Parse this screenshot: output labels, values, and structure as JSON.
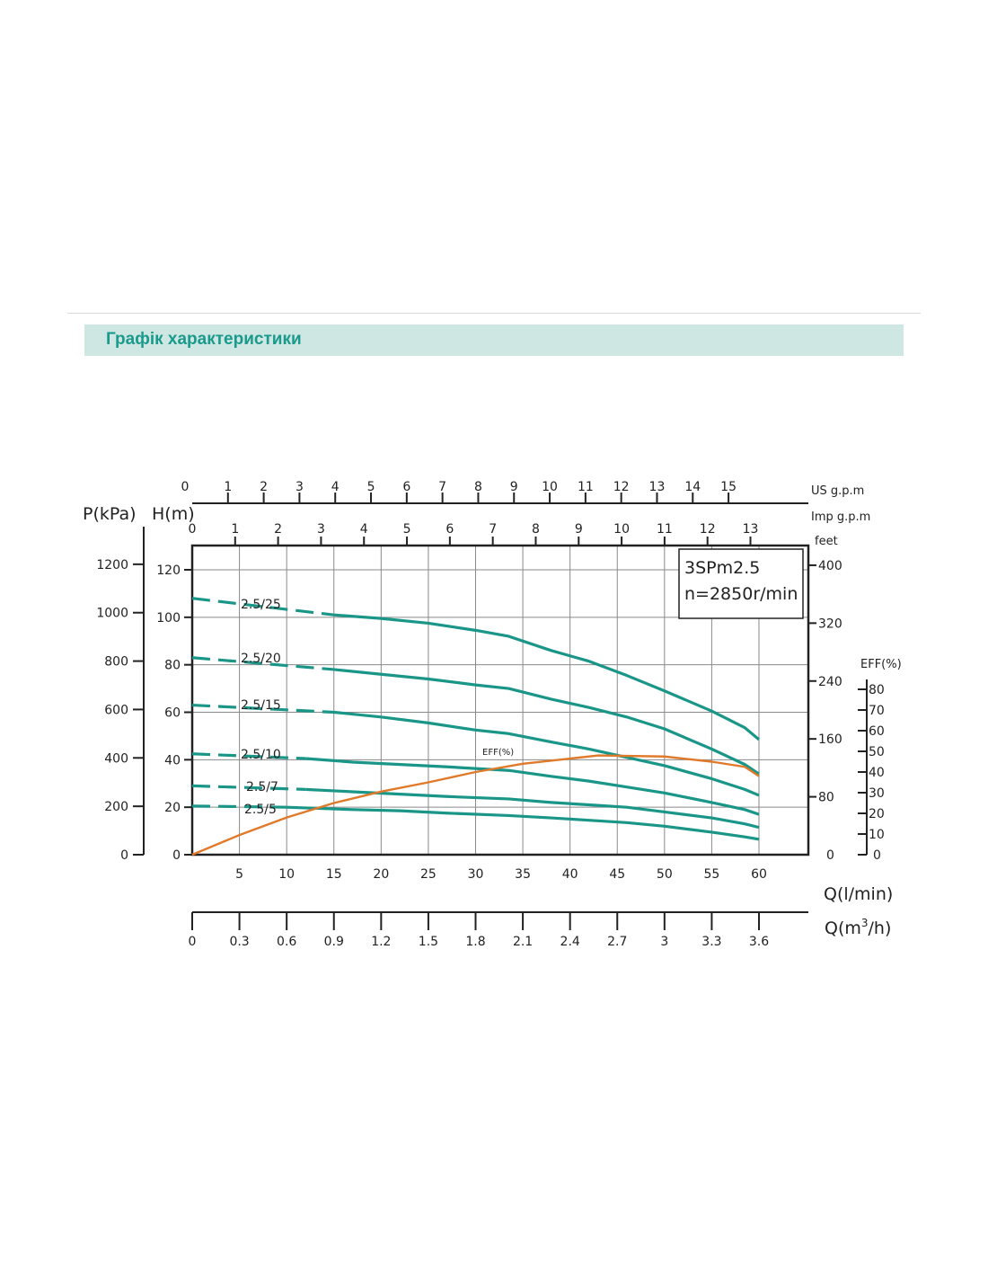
{
  "header": {
    "title": "Графік характеристики"
  },
  "chart_data": {
    "type": "line",
    "model": "3SPm2.5",
    "speed": "n=2850r/min",
    "xlabel_lmin": "Q(l/min)",
    "xlabel_m3h_prefix": "Q(m",
    "xlabel_m3h_sup": "3",
    "xlabel_m3h_suffix": "/h)",
    "ylabel_kpa": "P(kPa)",
    "ylabel_m": "H(m)",
    "axis_us_gpm_label": "US g.p.m",
    "axis_imp_gpm_label": "Imp g.p.m",
    "axis_feet_label": "feet",
    "axis_eff_label": "EFF(%)",
    "xlim": [
      0,
      65
    ],
    "ylim": [
      0,
      130
    ],
    "eff_ylim": [
      0,
      80
    ],
    "x_ticks_lmin": [
      "5",
      "10",
      "15",
      "20",
      "25",
      "30",
      "35",
      "40",
      "45",
      "50",
      "55",
      "60"
    ],
    "x_ticks_m3h": [
      "0",
      "0.3",
      "0.6",
      "0.9",
      "1.2",
      "1.5",
      "1.8",
      "2.1",
      "2.4",
      "2.7",
      "3",
      "3.3",
      "3.6"
    ],
    "us_gpm_ticks": [
      "0",
      "1",
      "2",
      "3",
      "4",
      "5",
      "6",
      "7",
      "8",
      "9",
      "10",
      "11",
      "12",
      "13",
      "14",
      "15"
    ],
    "imp_gpm_ticks": [
      "0",
      "1",
      "2",
      "3",
      "4",
      "5",
      "6",
      "7",
      "8",
      "9",
      "10",
      "11",
      "12",
      "13"
    ],
    "kpa_ticks": [
      "0",
      "200",
      "400",
      "600",
      "800",
      "1000",
      "1200"
    ],
    "m_ticks": [
      "0",
      "20",
      "40",
      "60",
      "80",
      "100",
      "120"
    ],
    "feet_ticks": [
      "0",
      "80",
      "160",
      "240",
      "320",
      "400"
    ],
    "eff_ticks": [
      "0",
      "10",
      "20",
      "30",
      "40",
      "50",
      "60",
      "70",
      "80"
    ],
    "series": [
      {
        "name": "2.5/25",
        "dashed": [
          [
            0,
            108
          ],
          [
            15,
            101
          ]
        ],
        "points": [
          [
            15,
            101
          ],
          [
            20,
            99.5
          ],
          [
            25,
            97.5
          ],
          [
            30,
            94.5
          ],
          [
            33.5,
            92
          ],
          [
            38,
            86
          ],
          [
            42,
            81.5
          ],
          [
            46,
            75.5
          ],
          [
            50,
            69
          ],
          [
            55,
            60.5
          ],
          [
            58.5,
            53.5
          ],
          [
            60,
            48.5
          ]
        ]
      },
      {
        "name": "2.5/20",
        "dashed": [
          [
            0,
            83
          ],
          [
            15,
            78
          ]
        ],
        "points": [
          [
            15,
            78
          ],
          [
            20,
            76
          ],
          [
            25,
            74
          ],
          [
            30,
            71.5
          ],
          [
            33.5,
            70
          ],
          [
            38,
            65.5
          ],
          [
            42,
            62
          ],
          [
            46,
            58
          ],
          [
            50,
            53
          ],
          [
            55,
            44.5
          ],
          [
            58.5,
            38
          ],
          [
            60,
            34
          ]
        ]
      },
      {
        "name": "2.5/15",
        "dashed": [
          [
            0,
            63
          ],
          [
            15,
            60
          ]
        ],
        "points": [
          [
            15,
            60
          ],
          [
            20,
            58
          ],
          [
            25,
            55.5
          ],
          [
            30,
            52.5
          ],
          [
            33.5,
            51
          ],
          [
            38,
            47.5
          ],
          [
            42,
            44.5
          ],
          [
            46,
            41
          ],
          [
            50,
            37.5
          ],
          [
            55,
            32
          ],
          [
            58.5,
            27.5
          ],
          [
            60,
            25
          ]
        ]
      },
      {
        "name": "2.5/10",
        "dashed": [
          [
            0,
            42.5
          ],
          [
            12,
            40.5
          ]
        ],
        "points": [
          [
            12,
            40.5
          ],
          [
            17,
            39
          ],
          [
            22,
            38
          ],
          [
            27,
            37
          ],
          [
            33.5,
            35.5
          ],
          [
            38,
            33
          ],
          [
            42,
            31
          ],
          [
            46,
            28.5
          ],
          [
            50,
            26
          ],
          [
            55,
            22
          ],
          [
            58.5,
            19
          ],
          [
            60,
            17
          ]
        ]
      },
      {
        "name": "2.5/7",
        "dashed": [
          [
            0,
            29
          ],
          [
            12,
            27.5
          ]
        ],
        "points": [
          [
            12,
            27.5
          ],
          [
            17,
            26.5
          ],
          [
            22,
            25.5
          ],
          [
            27,
            24.5
          ],
          [
            33.5,
            23.5
          ],
          [
            38,
            22
          ],
          [
            42,
            21
          ],
          [
            46,
            20
          ],
          [
            50,
            18
          ],
          [
            55,
            15.5
          ],
          [
            58.5,
            13
          ],
          [
            60,
            11.5
          ]
        ]
      },
      {
        "name": "2.5/5",
        "dashed": [
          [
            0,
            20.5
          ],
          [
            10,
            20
          ]
        ],
        "points": [
          [
            10,
            20
          ],
          [
            17,
            19
          ],
          [
            22,
            18.5
          ],
          [
            27,
            17.5
          ],
          [
            33.5,
            16.5
          ],
          [
            38,
            15.5
          ],
          [
            42,
            14.5
          ],
          [
            46,
            13.5
          ],
          [
            50,
            12
          ],
          [
            55,
            9.5
          ],
          [
            58.5,
            7.5
          ],
          [
            60,
            6.5
          ]
        ]
      }
    ],
    "efficiency": {
      "name": "EFF(%)",
      "points": [
        [
          0,
          0
        ],
        [
          5,
          9.5
        ],
        [
          10,
          18
        ],
        [
          15,
          25
        ],
        [
          20,
          30.5
        ],
        [
          25,
          35
        ],
        [
          30,
          40
        ],
        [
          35,
          44
        ],
        [
          40,
          46.5
        ],
        [
          43,
          48
        ],
        [
          50,
          47.5
        ],
        [
          55,
          45
        ],
        [
          58.5,
          42.5
        ],
        [
          60,
          38
        ]
      ]
    }
  }
}
